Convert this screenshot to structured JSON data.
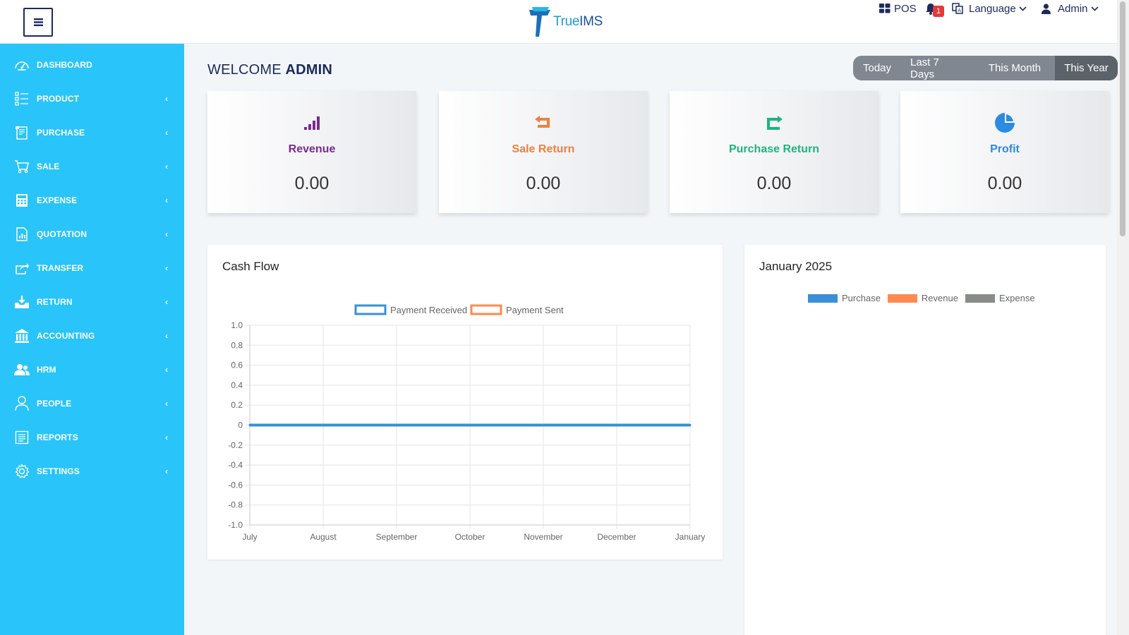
{
  "header": {
    "logo_text_a": "True",
    "logo_text_b": "IMS",
    "pos_label": "POS",
    "notification_count": "1",
    "language_label": "Language",
    "user_label": "Admin"
  },
  "sidebar": {
    "items": [
      {
        "label": "DASHBOARD",
        "icon": "dashboard-icon",
        "chevron": ""
      },
      {
        "label": "PRODUCT",
        "icon": "list-icon",
        "chevron": "‹"
      },
      {
        "label": "PURCHASE",
        "icon": "purchase-icon",
        "chevron": "‹"
      },
      {
        "label": "SALE",
        "icon": "cart-icon",
        "chevron": "‹"
      },
      {
        "label": "EXPENSE",
        "icon": "calculator-icon",
        "chevron": "‹"
      },
      {
        "label": "QUOTATION",
        "icon": "document-chart-icon",
        "chevron": "‹"
      },
      {
        "label": "TRANSFER",
        "icon": "share-icon",
        "chevron": "‹"
      },
      {
        "label": "RETURN",
        "icon": "download-tray-icon",
        "chevron": "‹"
      },
      {
        "label": "ACCOUNTING",
        "icon": "bank-icon",
        "chevron": "‹"
      },
      {
        "label": "HRM",
        "icon": "users-icon",
        "chevron": "‹"
      },
      {
        "label": "PEOPLE",
        "icon": "person-icon",
        "chevron": "‹"
      },
      {
        "label": "REPORTS",
        "icon": "report-icon",
        "chevron": "‹"
      },
      {
        "label": "SETTINGS",
        "icon": "gear-icon",
        "chevron": "‹"
      }
    ]
  },
  "welcome": {
    "prefix": "WELCOME",
    "name": "ADMIN"
  },
  "filters": {
    "options": [
      "Today",
      "Last 7 Days",
      "This Month",
      "This Year"
    ],
    "selected": "This Year"
  },
  "stats": [
    {
      "title": "Revenue",
      "value": "0.00",
      "color": "#7b2a8f",
      "icon": "signal-bars-icon"
    },
    {
      "title": "Sale Return",
      "value": "0.00",
      "color": "#ef7f40",
      "icon": "return-arrow-icon"
    },
    {
      "title": "Purchase Return",
      "value": "0.00",
      "color": "#1cb67c",
      "icon": "forward-arrow-icon"
    },
    {
      "title": "Profit",
      "value": "0.00",
      "color": "#2b8be0",
      "icon": "pie-icon"
    }
  ],
  "cashflow": {
    "title": "Cash Flow"
  },
  "monthly": {
    "title": "January 2025",
    "legend": [
      {
        "name": "Purchase",
        "color": "#3a8fd7"
      },
      {
        "name": "Revenue",
        "color": "#ff8a50"
      },
      {
        "name": "Expense",
        "color": "#878c87"
      }
    ]
  },
  "chart_data": {
    "type": "line",
    "title": "Cash Flow",
    "x": [
      "July",
      "August",
      "September",
      "October",
      "November",
      "December",
      "January"
    ],
    "series": [
      {
        "name": "Payment Received",
        "values": [
          0,
          0,
          0,
          0,
          0,
          0,
          0
        ],
        "color": "#3a8fd7"
      },
      {
        "name": "Payment Sent",
        "values": [
          0,
          0,
          0,
          0,
          0,
          0,
          0
        ],
        "color": "#ff8a50"
      }
    ],
    "ylim": [
      -1.0,
      1.0
    ],
    "yticks": [
      "1.0",
      "0.8",
      "0.6",
      "0.4",
      "0.2",
      "0",
      "-0.2",
      "-0.4",
      "-0.6",
      "-0.8",
      "-1.0"
    ],
    "grid": true,
    "legend": "top"
  }
}
